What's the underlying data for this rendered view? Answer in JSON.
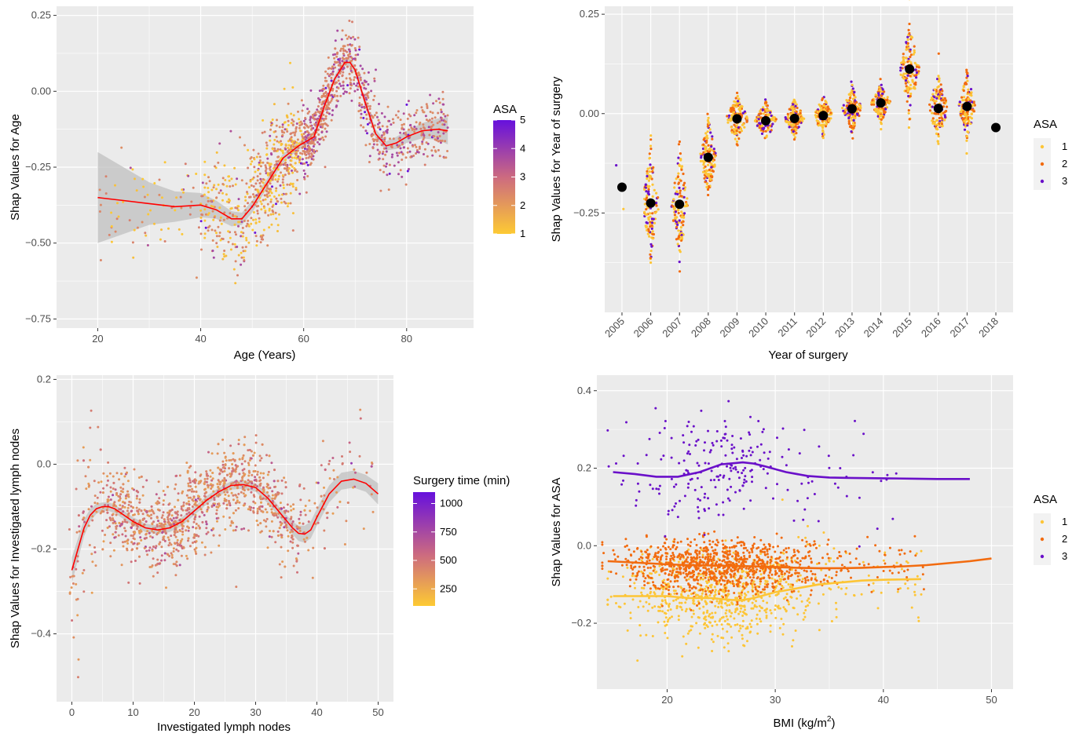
{
  "colors": {
    "panel_bg": "#ebebeb",
    "grid_major": "#ffffff",
    "smooth_line": "#ff0000",
    "ci_band": "#bdbdbd",
    "mean_point": "#000000",
    "asa_1": "#fdc536",
    "asa_2": "#f26b0f",
    "asa_3": "#6a10c9",
    "gradient_low": "#fdca33",
    "gradient_mid": "#cc6a80",
    "gradient_high": "#6610dd"
  },
  "chart_data": [
    {
      "type": "scatter",
      "xlabel": "Age (Years)",
      "ylabel": "Shap Values for Age",
      "xlim": [
        12,
        93
      ],
      "ylim": [
        -0.78,
        0.28
      ],
      "x_ticks": [
        20,
        40,
        60,
        80
      ],
      "y_ticks": [
        0.25,
        0,
        -0.25,
        -0.5,
        -0.75
      ],
      "y_tick_labels": [
        "0.25",
        "0.00",
        "−0.25",
        "−0.50",
        "−0.75"
      ],
      "grid": true,
      "legend": {
        "title": "ASA",
        "type": "gradient",
        "ticks": [
          "5",
          "4",
          "3",
          "2",
          "1"
        ],
        "range": [
          1,
          5
        ],
        "position": "right"
      },
      "smooth": {
        "x": [
          20,
          25,
          30,
          35,
          40,
          43,
          46,
          48,
          50,
          53,
          56,
          59,
          62,
          64,
          66,
          68,
          69,
          70,
          72,
          74,
          76,
          78,
          80,
          83,
          86,
          88
        ],
        "y": [
          -0.35,
          -0.36,
          -0.37,
          -0.38,
          -0.375,
          -0.39,
          -0.42,
          -0.42,
          -0.38,
          -0.3,
          -0.22,
          -0.18,
          -0.15,
          -0.05,
          0.04,
          0.095,
          0.095,
          0.07,
          -0.04,
          -0.14,
          -0.18,
          -0.17,
          -0.15,
          -0.13,
          -0.125,
          -0.13
        ],
        "ci": [
          0.15,
          0.11,
          0.07,
          0.05,
          0.04,
          0.03,
          0.025,
          0.02,
          0.02,
          0.015,
          0.015,
          0.012,
          0.012,
          0.012,
          0.012,
          0.012,
          0.012,
          0.012,
          0.012,
          0.015,
          0.015,
          0.02,
          0.02,
          0.025,
          0.035,
          0.045
        ]
      }
    },
    {
      "type": "scatter",
      "xlabel": "Year of surgery",
      "ylabel": "Shap Values for Year of surgery",
      "categories": [
        "2005",
        "2006",
        "2007",
        "2008",
        "2009",
        "2010",
        "2011",
        "2012",
        "2013",
        "2014",
        "2015",
        "2016",
        "2017",
        "2018"
      ],
      "means": [
        -0.185,
        -0.225,
        -0.228,
        -0.11,
        -0.013,
        -0.018,
        -0.012,
        -0.005,
        0.012,
        0.027,
        0.112,
        0.013,
        0.018,
        -0.035
      ],
      "spreads": [
        0.0,
        0.12,
        0.12,
        0.08,
        0.05,
        0.04,
        0.04,
        0.04,
        0.05,
        0.04,
        0.09,
        0.07,
        0.07,
        0.0
      ],
      "widths": [
        0,
        0.3,
        0.3,
        0.3,
        0.4,
        0.4,
        0.35,
        0.35,
        0.35,
        0.35,
        0.35,
        0.35,
        0.3,
        0
      ],
      "ylim": [
        -0.5,
        0.27
      ],
      "y_ticks": [
        0.25,
        0,
        -0.25
      ],
      "y_tick_labels": [
        "0.25",
        "0.00",
        "−0.25"
      ],
      "grid": true,
      "legend": {
        "title": "ASA",
        "type": "discrete",
        "entries": [
          "1",
          "2",
          "3"
        ],
        "position": "right"
      }
    },
    {
      "type": "scatter",
      "xlabel": "Investigated lymph nodes",
      "ylabel": "Shap Values for Investigated lymph nodes",
      "xlim": [
        -2.5,
        52.5
      ],
      "ylim": [
        -0.56,
        0.21
      ],
      "x_ticks": [
        0,
        10,
        20,
        30,
        40,
        50
      ],
      "y_ticks": [
        0.2,
        0,
        -0.2,
        -0.4
      ],
      "y_tick_labels": [
        "0.2",
        "0.0",
        "−0.2",
        "−0.4"
      ],
      "grid": true,
      "legend": {
        "title": "Surgery time (min)",
        "type": "gradient",
        "ticks": [
          "1000",
          "750",
          "500",
          "250"
        ],
        "range": [
          100,
          1100
        ],
        "position": "right"
      },
      "smooth": {
        "x": [
          0,
          1,
          2,
          3,
          4,
          5,
          6,
          7,
          8,
          10,
          12,
          14,
          16,
          18,
          20,
          22,
          24,
          26,
          28,
          30,
          32,
          34,
          36,
          37,
          38,
          39,
          40,
          42,
          44,
          46,
          48,
          50
        ],
        "y": [
          -0.25,
          -0.2,
          -0.15,
          -0.12,
          -0.105,
          -0.1,
          -0.1,
          -0.105,
          -0.115,
          -0.135,
          -0.15,
          -0.155,
          -0.15,
          -0.135,
          -0.11,
          -0.085,
          -0.065,
          -0.05,
          -0.048,
          -0.055,
          -0.08,
          -0.115,
          -0.15,
          -0.163,
          -0.165,
          -0.155,
          -0.125,
          -0.07,
          -0.04,
          -0.035,
          -0.045,
          -0.07
        ],
        "ci": [
          0.03,
          0.025,
          0.02,
          0.015,
          0.012,
          0.01,
          0.01,
          0.01,
          0.01,
          0.01,
          0.01,
          0.01,
          0.01,
          0.01,
          0.01,
          0.01,
          0.01,
          0.01,
          0.01,
          0.01,
          0.012,
          0.012,
          0.015,
          0.018,
          0.02,
          0.02,
          0.02,
          0.02,
          0.02,
          0.02,
          0.02,
          0.025
        ]
      }
    },
    {
      "type": "scatter",
      "xlabel": "BMI (kg/m",
      "xlabel_sup": "2",
      "xlabel_end": ")",
      "ylabel": "Shap Values for ASA",
      "xlim": [
        13.5,
        52
      ],
      "ylim": [
        -0.37,
        0.44
      ],
      "x_ticks": [
        20,
        30,
        40,
        50
      ],
      "y_ticks": [
        0.4,
        0.2,
        0,
        -0.2
      ],
      "y_tick_labels": [
        "0.4",
        "0.2",
        "0.0",
        "−0.2"
      ],
      "grid": true,
      "legend": {
        "title": "ASA",
        "type": "discrete",
        "entries": [
          "1",
          "2",
          "3"
        ],
        "position": "right"
      },
      "series": [
        {
          "name": "1",
          "x": [
            15,
            18,
            20,
            22,
            24,
            26,
            27,
            28,
            30,
            32,
            34,
            36,
            38,
            40,
            42,
            43.5
          ],
          "y": [
            -0.13,
            -0.13,
            -0.13,
            -0.135,
            -0.135,
            -0.14,
            -0.14,
            -0.135,
            -0.12,
            -0.11,
            -0.1,
            -0.095,
            -0.09,
            -0.088,
            -0.087,
            -0.086
          ]
        },
        {
          "name": "2",
          "x": [
            14.5,
            16,
            18,
            20,
            22,
            24,
            26,
            28,
            30,
            32,
            34,
            36,
            38,
            40,
            42,
            44,
            46,
            48,
            50
          ],
          "y": [
            -0.04,
            -0.042,
            -0.045,
            -0.048,
            -0.05,
            -0.051,
            -0.052,
            -0.053,
            -0.055,
            -0.057,
            -0.058,
            -0.058,
            -0.057,
            -0.055,
            -0.053,
            -0.05,
            -0.045,
            -0.04,
            -0.033
          ]
        },
        {
          "name": "3",
          "x": [
            15,
            17,
            19,
            21,
            23,
            25,
            27,
            28,
            29,
            31,
            33,
            35,
            37,
            40,
            43,
            45,
            48
          ],
          "y": [
            0.19,
            0.185,
            0.178,
            0.178,
            0.19,
            0.21,
            0.215,
            0.212,
            0.205,
            0.19,
            0.18,
            0.176,
            0.175,
            0.174,
            0.173,
            0.172,
            0.172
          ]
        }
      ]
    }
  ]
}
